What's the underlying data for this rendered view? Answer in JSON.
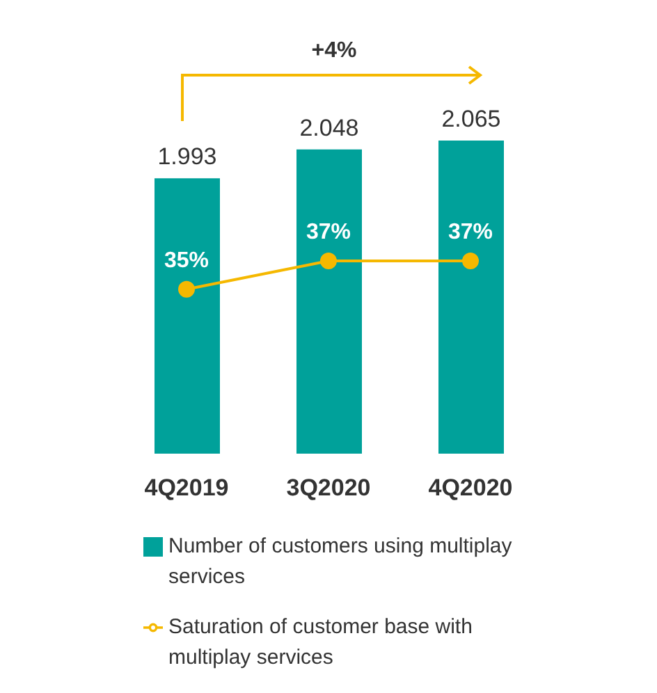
{
  "chart_data": {
    "type": "bar",
    "categories": [
      "4Q2019",
      "3Q2020",
      "4Q2020"
    ],
    "series": [
      {
        "name": "Number of customers using multiplay services",
        "color": "#00a19a",
        "values": [
          1.993,
          2.048,
          2.065
        ]
      },
      {
        "name": "Saturation of customer base with multiplay services",
        "type": "line",
        "axis": "y2",
        "color": "#f5b800",
        "values": [
          35,
          37,
          37
        ],
        "value_labels": [
          "35%",
          "37%",
          "37%"
        ]
      }
    ],
    "ylim": [
      1.468,
      2.065
    ],
    "y2lim": [
      23.4,
      45.5
    ],
    "data_labels": true,
    "marker": "circle",
    "legend": "bottom",
    "annotations": [
      "+4%"
    ]
  }
}
